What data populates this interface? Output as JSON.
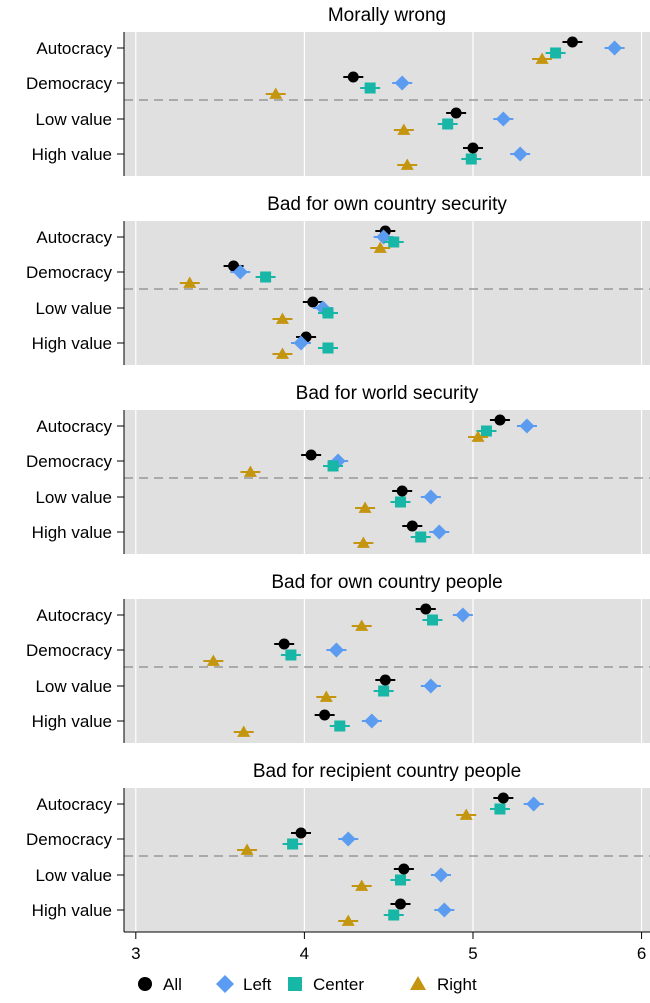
{
  "chart_data": {
    "type": "scatter",
    "x_ticks": [
      3,
      4,
      5,
      6
    ],
    "xlim": [
      2.93,
      6.05
    ],
    "categories": [
      "Autocracy",
      "Democracy",
      "Low value",
      "High value"
    ],
    "legend": {
      "position": "bottom",
      "items": [
        {
          "name": "All",
          "color": "#000000",
          "marker": "circle"
        },
        {
          "name": "Left",
          "color": "#5b9bf0",
          "marker": "diamond"
        },
        {
          "name": "Center",
          "color": "#17b6a6",
          "marker": "square"
        },
        {
          "name": "Right",
          "color": "#c4950f",
          "marker": "triangle"
        }
      ]
    },
    "panels": [
      {
        "title": "Morally wrong",
        "series": [
          {
            "name": "All",
            "values": [
              5.59,
              4.29,
              4.9,
              5.0
            ]
          },
          {
            "name": "Left",
            "values": [
              5.84,
              4.58,
              5.18,
              5.28
            ]
          },
          {
            "name": "Center",
            "values": [
              5.49,
              4.39,
              4.85,
              4.99
            ]
          },
          {
            "name": "Right",
            "values": [
              5.41,
              3.83,
              4.59,
              4.61
            ]
          }
        ]
      },
      {
        "title": "Bad for own country security",
        "series": [
          {
            "name": "All",
            "values": [
              4.48,
              3.58,
              4.05,
              4.01
            ]
          },
          {
            "name": "Left",
            "values": [
              4.47,
              3.62,
              4.11,
              3.98
            ]
          },
          {
            "name": "Center",
            "values": [
              4.53,
              3.77,
              4.14,
              4.14
            ]
          },
          {
            "name": "Right",
            "values": [
              4.45,
              3.32,
              3.87,
              3.87
            ]
          }
        ]
      },
      {
        "title": "Bad for world security",
        "series": [
          {
            "name": "All",
            "values": [
              5.16,
              4.04,
              4.58,
              4.64
            ]
          },
          {
            "name": "Left",
            "values": [
              5.32,
              4.2,
              4.75,
              4.8
            ]
          },
          {
            "name": "Center",
            "values": [
              5.08,
              4.17,
              4.57,
              4.69
            ]
          },
          {
            "name": "Right",
            "values": [
              5.03,
              3.68,
              4.36,
              4.35
            ]
          }
        ]
      },
      {
        "title": "Bad for own country people",
        "series": [
          {
            "name": "All",
            "values": [
              4.72,
              3.88,
              4.48,
              4.12
            ]
          },
          {
            "name": "Left",
            "values": [
              4.94,
              4.19,
              4.75,
              4.4
            ]
          },
          {
            "name": "Center",
            "values": [
              4.76,
              3.92,
              4.47,
              4.21
            ]
          },
          {
            "name": "Right",
            "values": [
              4.34,
              3.46,
              4.13,
              3.64
            ]
          }
        ]
      },
      {
        "title": "Bad for recipient country people",
        "series": [
          {
            "name": "All",
            "values": [
              5.18,
              3.98,
              4.59,
              4.57
            ]
          },
          {
            "name": "Left",
            "values": [
              5.36,
              4.26,
              4.81,
              4.83
            ]
          },
          {
            "name": "Center",
            "values": [
              5.16,
              3.93,
              4.57,
              4.53
            ]
          },
          {
            "name": "Right",
            "values": [
              4.96,
              3.66,
              4.34,
              4.26
            ]
          }
        ]
      }
    ]
  }
}
